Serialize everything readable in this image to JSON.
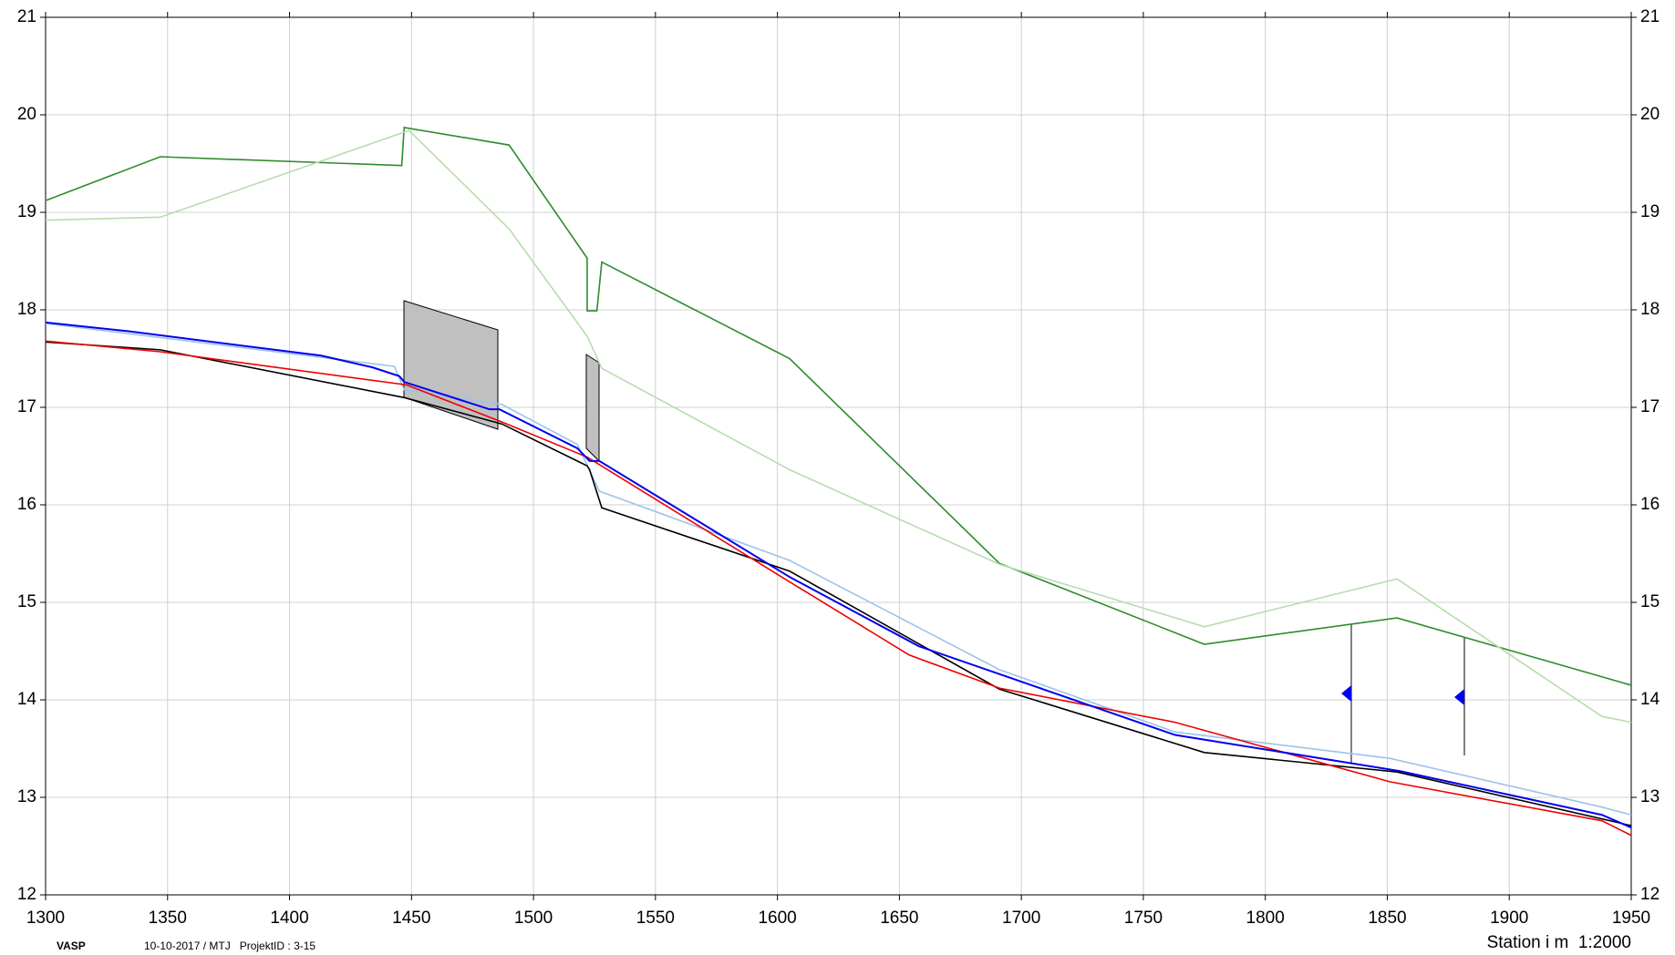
{
  "chart_data": {
    "type": "line",
    "xlim": [
      1300,
      1950
    ],
    "xticks": [
      1300,
      1350,
      1400,
      1450,
      1500,
      1550,
      1600,
      1650,
      1700,
      1750,
      1800,
      1850,
      1900,
      1950
    ],
    "ylim": [
      12,
      21
    ],
    "yticks": [
      12,
      13,
      14,
      15,
      16,
      17,
      18,
      19,
      20,
      21
    ],
    "grid": true,
    "annotations": [
      "VASP",
      "10-10-2017 / MTJ   ProjektID : 3-15",
      "Station i m  1:2000"
    ],
    "series": [
      {
        "color": "#2e8b2e",
        "x": [
          1300,
          1347,
          1446,
          1447,
          1490,
          1522,
          1522,
          1526,
          1528,
          1605,
          1691,
          1775,
          1854,
          1950
        ],
        "values": [
          19.12,
          19.57,
          19.48,
          19.87,
          19.69,
          18.53,
          17.99,
          17.99,
          18.49,
          17.5,
          15.4,
          14.57,
          14.84,
          14.15
        ]
      },
      {
        "color": "#b8dcb0",
        "x": [
          1300,
          1347,
          1449,
          1490,
          1522,
          1528,
          1605,
          1691,
          1775,
          1854,
          1938,
          1950
        ],
        "values": [
          18.92,
          18.95,
          19.84,
          18.83,
          17.73,
          17.4,
          16.36,
          15.39,
          14.75,
          15.24,
          13.83,
          13.77
        ]
      },
      {
        "color": "#9cc3ec",
        "x": [
          1300,
          1443,
          1447,
          1487,
          1518,
          1527,
          1605,
          1691,
          1763,
          1851,
          1938,
          1950
        ],
        "values": [
          17.86,
          17.42,
          17.18,
          17.03,
          16.62,
          16.14,
          15.43,
          14.31,
          13.67,
          13.4,
          12.9,
          12.82
        ]
      },
      {
        "color": "#000000",
        "x": [
          1300,
          1347,
          1447,
          1487,
          1522,
          1523,
          1528,
          1605,
          1691,
          1775,
          1854,
          1950
        ],
        "values": [
          17.67,
          17.59,
          17.1,
          16.83,
          16.4,
          16.36,
          15.97,
          15.32,
          14.11,
          13.46,
          13.26,
          12.71
        ]
      },
      {
        "color": "#ee0000",
        "x": [
          1300,
          1347,
          1448,
          1487,
          1522,
          1605,
          1654,
          1691,
          1763,
          1851,
          1938,
          1950
        ],
        "values": [
          17.68,
          17.57,
          17.23,
          16.85,
          16.49,
          15.21,
          14.46,
          14.12,
          13.77,
          13.16,
          12.76,
          12.61
        ]
      },
      {
        "color": "#0000ee",
        "x": [
          1300,
          1334,
          1413,
          1434,
          1445,
          1447,
          1482,
          1486,
          1518,
          1523,
          1527,
          1605,
          1658,
          1763,
          1855,
          1938,
          1950
        ],
        "values": [
          17.87,
          17.78,
          17.53,
          17.41,
          17.32,
          17.26,
          16.98,
          16.98,
          16.58,
          16.45,
          16.45,
          15.26,
          14.55,
          13.64,
          13.27,
          12.82,
          12.69
        ]
      }
    ]
  }
}
